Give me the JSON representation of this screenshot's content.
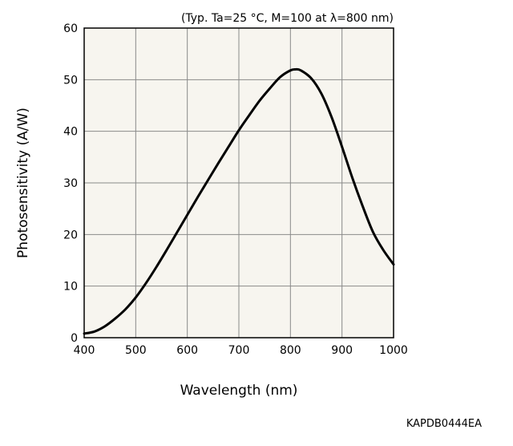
{
  "chart_data": {
    "type": "line",
    "title": "",
    "condition_note": "(Typ. Ta=25 °C, M=100 at λ=800 nm)",
    "xlabel": "Wavelength (nm)",
    "ylabel": "Photosensitivity (A/W)",
    "xlim": [
      400,
      1000
    ],
    "ylim": [
      0,
      60
    ],
    "x_ticks": [
      400,
      500,
      600,
      700,
      800,
      900,
      1000
    ],
    "y_ticks": [
      0,
      10,
      20,
      30,
      40,
      50,
      60
    ],
    "grid": true,
    "plot_background": "#f7f5ef",
    "line_color": "#000000",
    "series": [
      {
        "x": [
          400,
          420,
          440,
          460,
          480,
          500,
          520,
          540,
          560,
          580,
          600,
          620,
          640,
          660,
          680,
          700,
          720,
          740,
          760,
          780,
          800,
          810,
          820,
          840,
          860,
          880,
          900,
          920,
          940,
          960,
          980,
          1000
        ],
        "values": [
          0.8,
          1.2,
          2.2,
          3.7,
          5.5,
          7.8,
          10.6,
          13.7,
          17.0,
          20.4,
          23.8,
          27.2,
          30.5,
          33.8,
          37.0,
          40.2,
          43.1,
          45.9,
          48.3,
          50.5,
          51.8,
          52.0,
          51.8,
          50.3,
          47.3,
          42.7,
          37.0,
          31.0,
          25.5,
          20.5,
          17.0,
          14.2
        ]
      }
    ],
    "figure_code": "KAPDB0444EA"
  }
}
